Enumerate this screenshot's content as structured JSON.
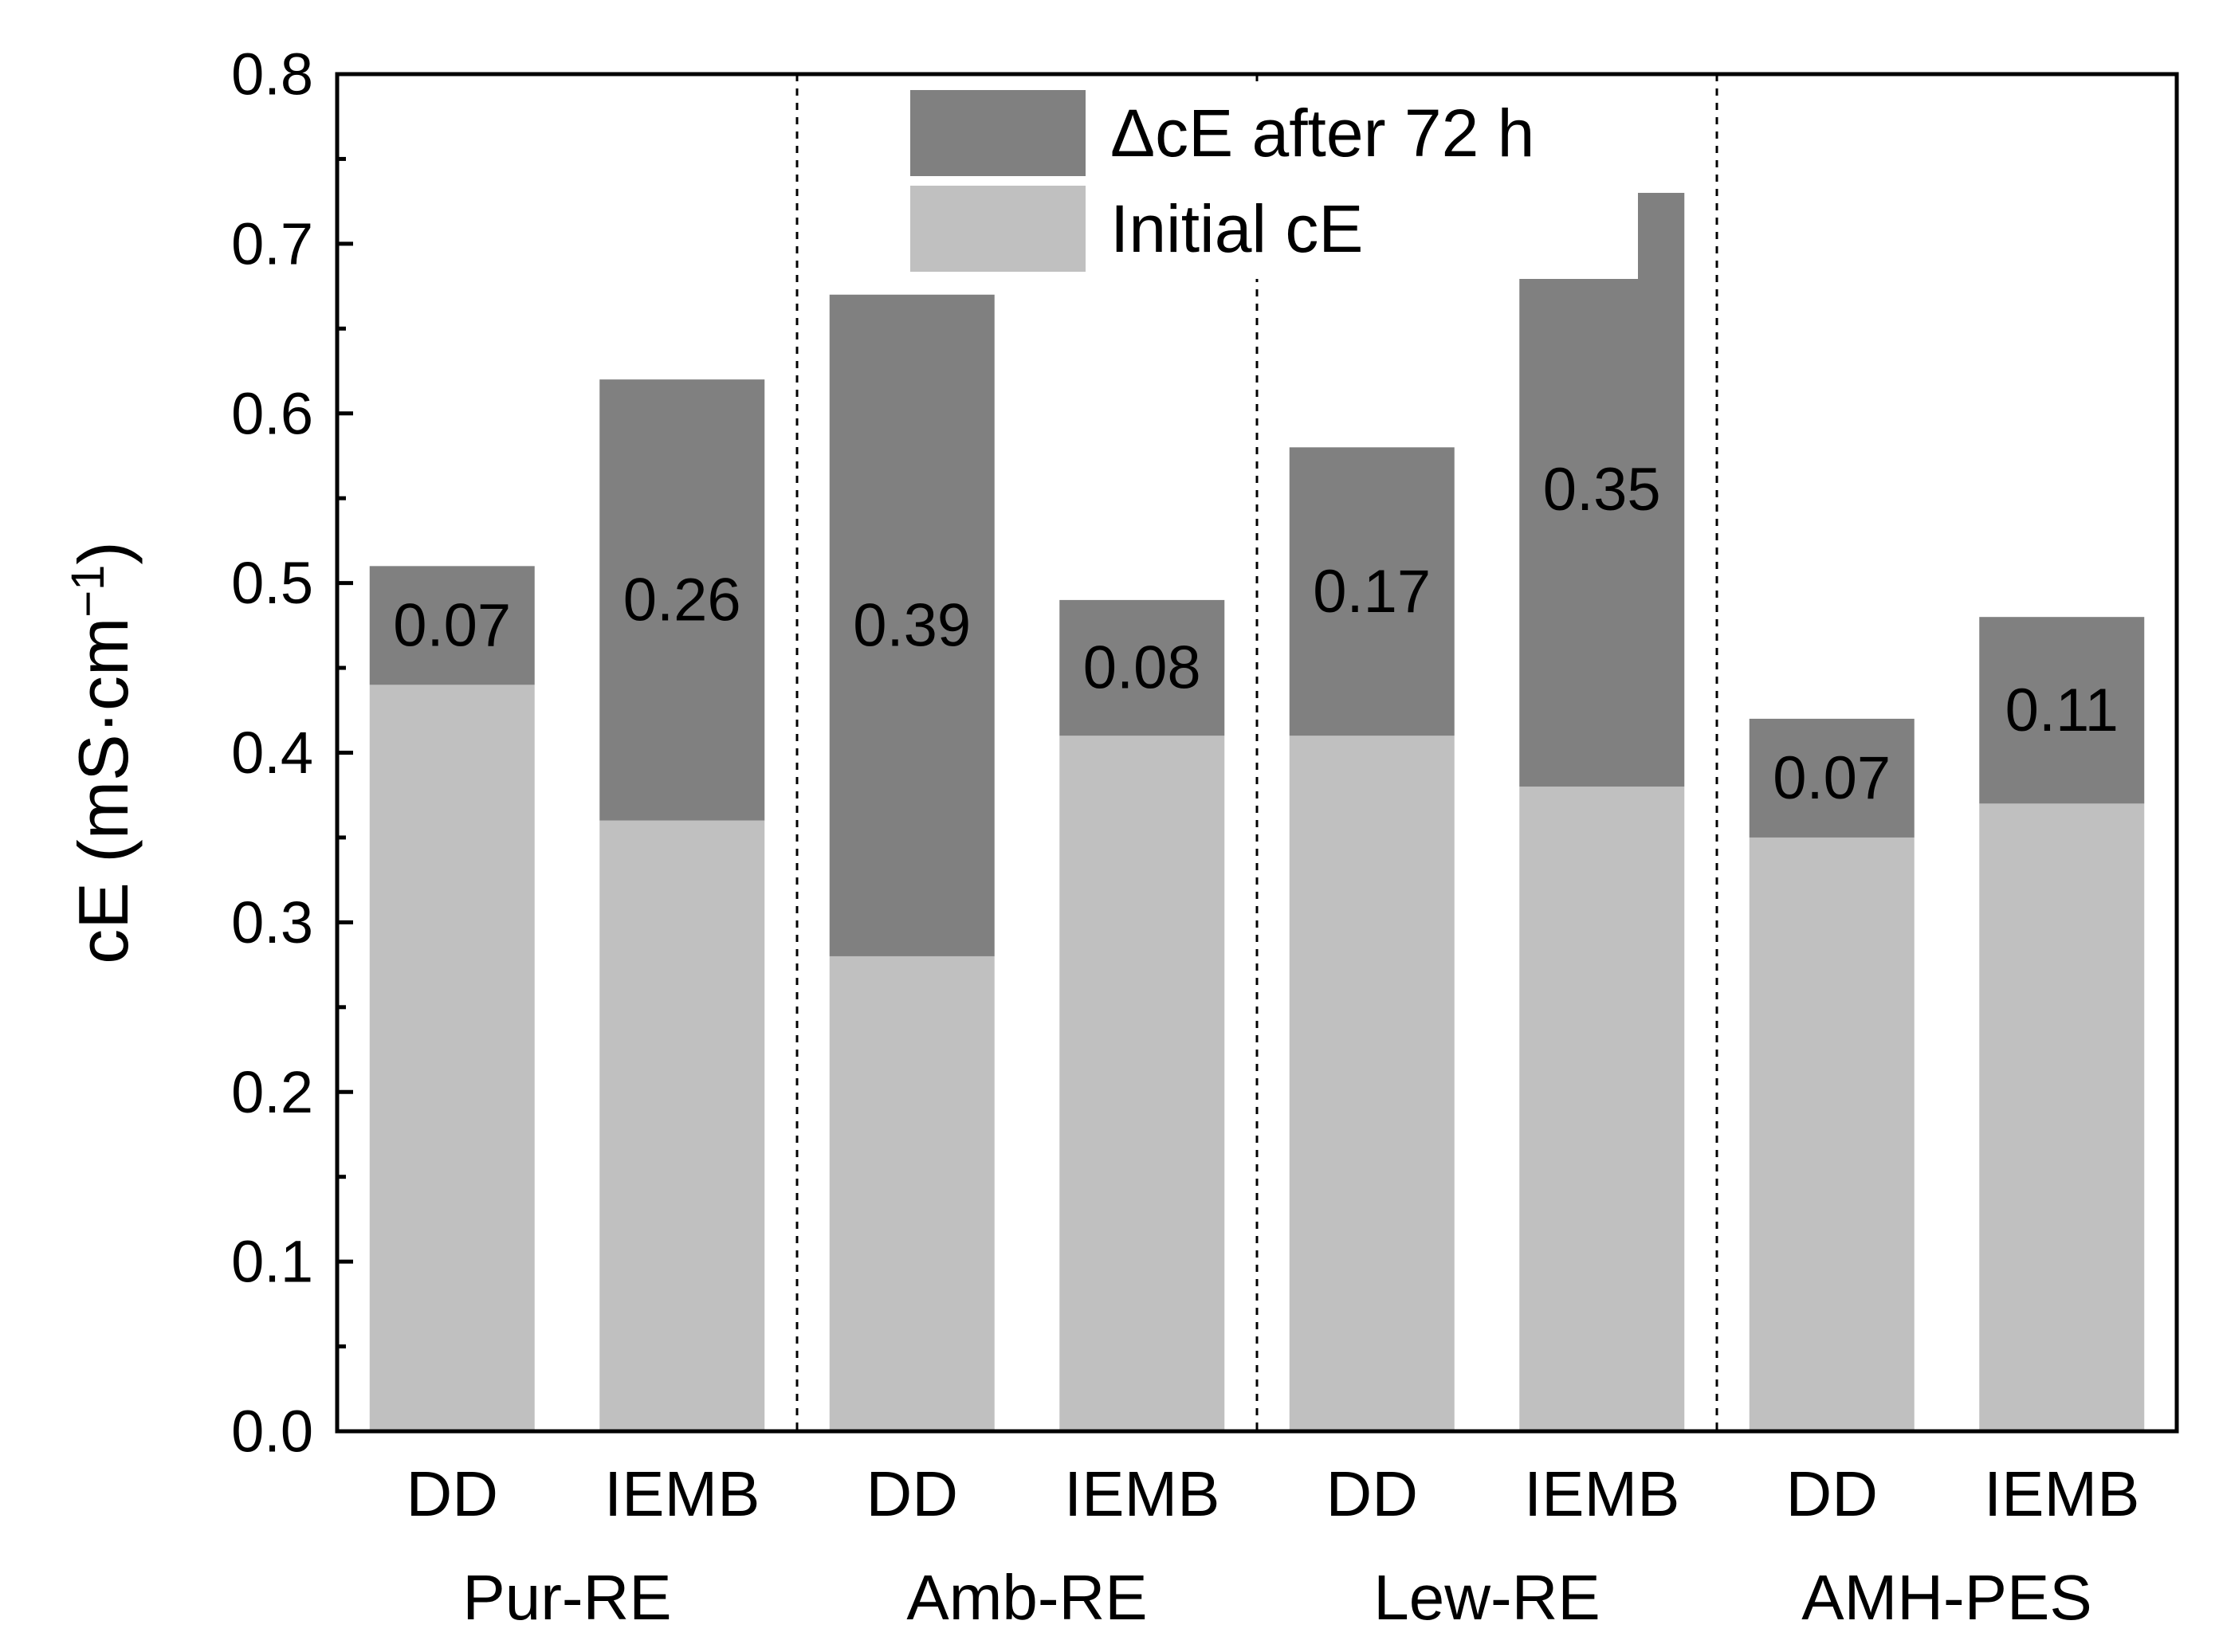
{
  "chart_data": {
    "type": "bar",
    "stacked": true,
    "title": "",
    "xlabel": "",
    "ylabel": "cE (mS·cm",
    "ylabel_superscript": "−1",
    "ylabel_close": ")",
    "ylim": [
      0.0,
      0.8
    ],
    "yticks": [
      "0.0",
      "0.1",
      "0.2",
      "0.3",
      "0.4",
      "0.5",
      "0.6",
      "0.7",
      "0.8"
    ],
    "grid": false,
    "legend_position": "top-center",
    "colors": {
      "initial": "#c0c0c0",
      "delta": "#808080",
      "axis": "#000000",
      "separator": "#000000"
    },
    "series": [
      {
        "name": "ΔcE after 72 h",
        "key": "delta",
        "color": "#808080"
      },
      {
        "name": "Initial cE",
        "key": "initial",
        "color": "#c0c0c0"
      }
    ],
    "groups": [
      {
        "name": "Pur-RE",
        "bars": [
          {
            "category": "DD",
            "initial": 0.44,
            "total": 0.51,
            "delta_label": "0.07"
          },
          {
            "category": "IEMB",
            "initial": 0.36,
            "total": 0.62,
            "delta_label": "0.26"
          }
        ]
      },
      {
        "name": "Amb-RE",
        "bars": [
          {
            "category": "DD",
            "initial": 0.28,
            "total": 0.67,
            "delta_label": "0.39"
          },
          {
            "category": "IEMB",
            "initial": 0.41,
            "total": 0.49,
            "delta_label": "0.08"
          }
        ]
      },
      {
        "name": "Lew-RE",
        "bars": [
          {
            "category": "DD",
            "initial": 0.41,
            "total": 0.58,
            "delta_label": "0.17"
          },
          {
            "category": "IEMB",
            "initial": 0.38,
            "total": 0.73,
            "delta_label": "0.35"
          }
        ]
      },
      {
        "name": "AMH-PES",
        "bars": [
          {
            "category": "DD",
            "initial": 0.35,
            "total": 0.42,
            "delta_label": "0.07"
          },
          {
            "category": "IEMB",
            "initial": 0.37,
            "total": 0.48,
            "delta_label": "0.11"
          }
        ]
      }
    ]
  }
}
